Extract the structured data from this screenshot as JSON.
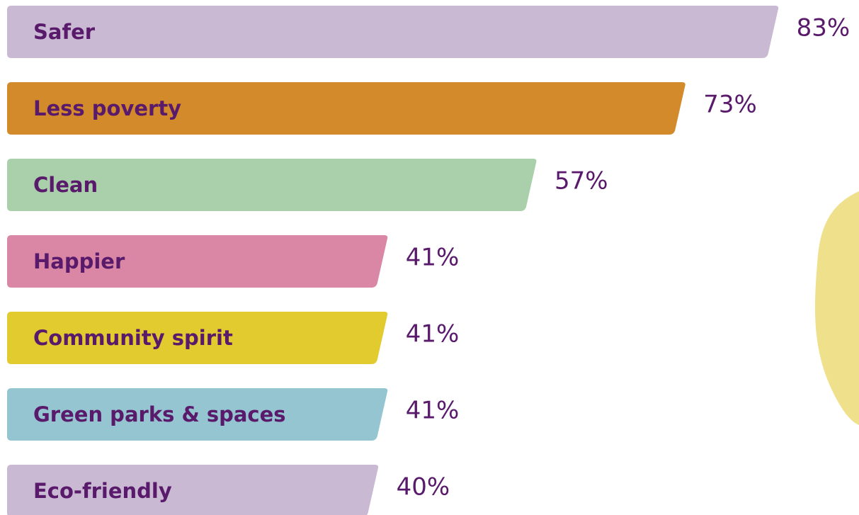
{
  "chart_data": {
    "type": "bar",
    "orientation": "horizontal",
    "categories": [
      "Safer",
      "Less poverty",
      "Clean",
      "Happier",
      "Community spirit",
      "Green parks & spaces",
      "Eco-friendly"
    ],
    "values": [
      83,
      73,
      57,
      41,
      41,
      41,
      40
    ],
    "value_labels": [
      "83%",
      "73%",
      "57%",
      "41%",
      "41%",
      "41%",
      "40%"
    ],
    "colors": [
      "#c9b9d3",
      "#d38a2a",
      "#aad0ab",
      "#d987a5",
      "#e1cb2f",
      "#94c5d0",
      "#c9b9d3"
    ]
  }
}
